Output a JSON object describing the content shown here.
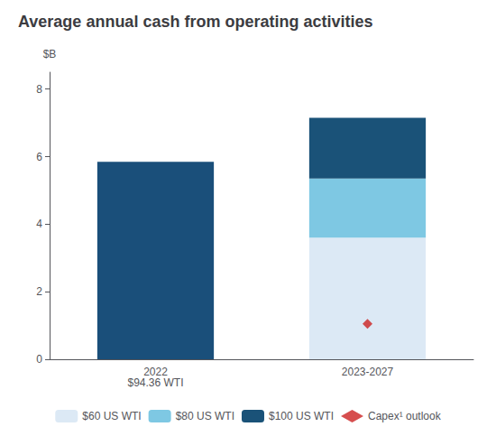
{
  "chart_data": {
    "type": "bar",
    "title": "Average annual cash from operating activities",
    "y_label": "$B",
    "categories": [
      "2022\n$94.36 WTI",
      "2023-2027"
    ],
    "stacked": true,
    "series": [
      {
        "color": "#1a4f7a",
        "values": [
          5.85,
          null
        ]
      },
      {
        "name": "$60 US WTI",
        "color": "#dce9f5",
        "values": [
          null,
          3.6
        ]
      },
      {
        "name": "$80 US WTI",
        "color": "#7ec8e3",
        "values": [
          null,
          1.75
        ]
      },
      {
        "name": "$100 US WTI",
        "color": "#1a5278",
        "values": [
          null,
          1.8
        ]
      },
      {
        "name": "Capex¹ outlook",
        "type": "scatter",
        "marker": "diamond",
        "color": "#cc2222",
        "values": [
          null,
          1.05
        ]
      }
    ],
    "ylim": [
      0,
      8.5
    ],
    "yticks": [
      0,
      2,
      4,
      6,
      8
    ],
    "grid": false,
    "legend": "bottom"
  }
}
